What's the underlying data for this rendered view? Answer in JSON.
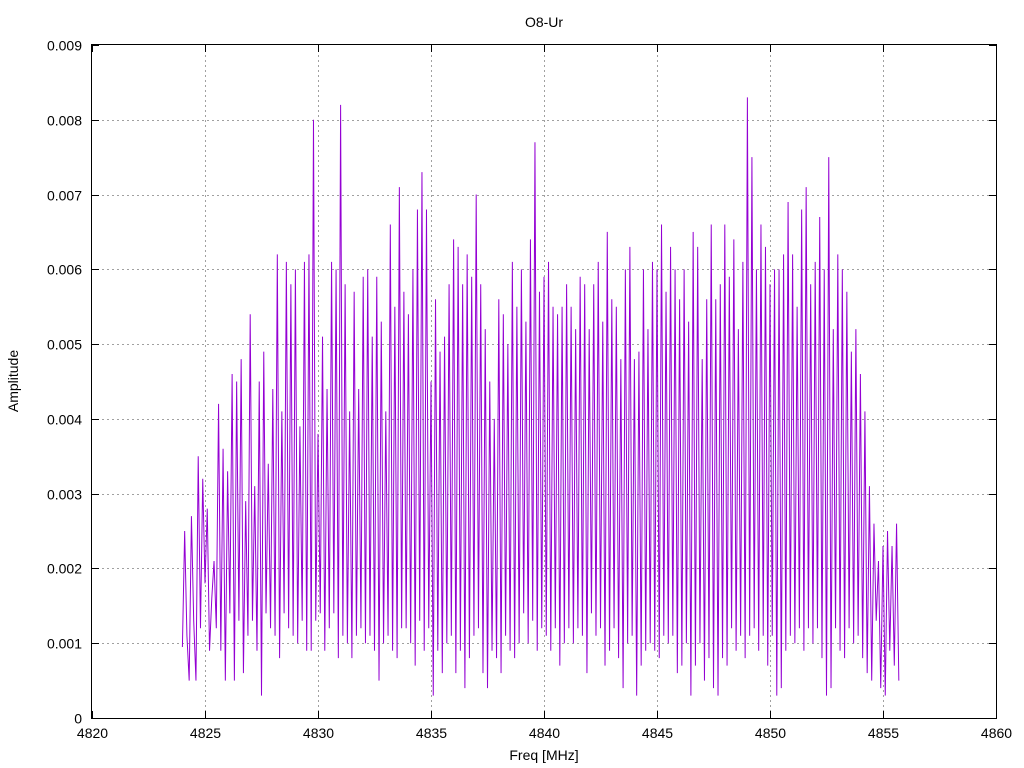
{
  "chart_data": {
    "type": "line",
    "title": "O8-Ur",
    "xlabel": "Freq [MHz]",
    "ylabel": "Amplitude",
    "xlim": [
      4820,
      4860
    ],
    "ylim": [
      0,
      0.009
    ],
    "x_ticks": [
      "4820",
      "4825",
      "4830",
      "4835",
      "4840",
      "4845",
      "4850",
      "4855",
      "4860"
    ],
    "y_ticks": [
      "0",
      "0.001",
      "0.002",
      "0.003",
      "0.004",
      "0.005",
      "0.006",
      "0.007",
      "0.008",
      "0.009"
    ],
    "grid": true,
    "series": [
      {
        "color": "#9400d3",
        "x_start": 4824.0,
        "x_step": 0.1,
        "values": [
          0.00095,
          0.0025,
          0.0011,
          0.0005,
          0.0027,
          0.0013,
          0.0005,
          0.0035,
          0.0012,
          0.0032,
          0.0018,
          0.0028,
          0.0009,
          0.0016,
          0.0021,
          0.0012,
          0.0042,
          0.0009,
          0.0036,
          0.0005,
          0.0033,
          0.0014,
          0.0046,
          0.0005,
          0.0045,
          0.0013,
          0.0048,
          0.0006,
          0.0029,
          0.0011,
          0.0054,
          0.0013,
          0.0031,
          0.0009,
          0.0045,
          0.0003,
          0.0049,
          0.0014,
          0.0034,
          0.0012,
          0.0044,
          0.0011,
          0.0062,
          0.0008,
          0.0041,
          0.0014,
          0.0061,
          0.0012,
          0.0058,
          0.0011,
          0.006,
          0.001,
          0.0039,
          0.0013,
          0.0061,
          0.0009,
          0.0062,
          0.0009,
          0.008,
          0.0013,
          0.0038,
          0.0014,
          0.0051,
          0.0009,
          0.0044,
          0.0012,
          0.0061,
          0.0014,
          0.006,
          0.0008,
          0.0082,
          0.0011,
          0.0058,
          0.001,
          0.0041,
          0.0008,
          0.0057,
          0.0011,
          0.0044,
          0.0012,
          0.0059,
          0.001,
          0.006,
          0.0011,
          0.0051,
          0.0009,
          0.0059,
          0.0005,
          0.0053,
          0.001,
          0.0041,
          0.0011,
          0.0066,
          0.0009,
          0.0055,
          0.0008,
          0.0071,
          0.0012,
          0.0057,
          0.0012,
          0.0054,
          0.001,
          0.006,
          0.0007,
          0.0068,
          0.0013,
          0.0073,
          0.0009,
          0.0068,
          0.0012,
          0.0045,
          0.0003,
          0.0056,
          0.0009,
          0.0049,
          0.0006,
          0.0051,
          0.001,
          0.0058,
          0.0011,
          0.0064,
          0.0006,
          0.0063,
          0.0009,
          0.0058,
          0.0004,
          0.0062,
          0.0008,
          0.0059,
          0.0011,
          0.007,
          0.0012,
          0.0058,
          0.0006,
          0.0052,
          0.0004,
          0.0045,
          0.0009,
          0.004,
          0.0008,
          0.0056,
          0.0006,
          0.0054,
          0.0011,
          0.005,
          0.0009,
          0.0061,
          0.0008,
          0.0055,
          0.001,
          0.006,
          0.0014,
          0.0053,
          0.001,
          0.0064,
          0.0013,
          0.0077,
          0.0009,
          0.0057,
          0.0012,
          0.0059,
          0.0011,
          0.0061,
          0.0009,
          0.0055,
          0.0012,
          0.0054,
          0.0007,
          0.0055,
          0.001,
          0.0058,
          0.0012,
          0.0055,
          0.001,
          0.0052,
          0.0012,
          0.0059,
          0.0011,
          0.0058,
          0.0006,
          0.0052,
          0.0014,
          0.0058,
          0.0011,
          0.0061,
          0.0012,
          0.0053,
          0.0007,
          0.0065,
          0.0009,
          0.0056,
          0.0012,
          0.0055,
          0.0008,
          0.0048,
          0.0004,
          0.006,
          0.001,
          0.0063,
          0.0011,
          0.0048,
          0.0003,
          0.0049,
          0.0007,
          0.006,
          0.0009,
          0.0052,
          0.001,
          0.0061,
          0.0009,
          0.006,
          0.0008,
          0.0066,
          0.0011,
          0.0057,
          0.001,
          0.0063,
          0.0011,
          0.006,
          0.0006,
          0.0056,
          0.0007,
          0.006,
          0.001,
          0.0053,
          0.0003,
          0.0065,
          0.0007,
          0.0063,
          0.001,
          0.0048,
          0.0005,
          0.0056,
          0.0008,
          0.0066,
          0.0004,
          0.0056,
          0.0003,
          0.0058,
          0.0008,
          0.0066,
          0.0007,
          0.0059,
          0.0012,
          0.0064,
          0.0009,
          0.0052,
          0.0011,
          0.0061,
          0.0008,
          0.0083,
          0.0011,
          0.0075,
          0.0012,
          0.006,
          0.0009,
          0.0066,
          0.0011,
          0.0063,
          0.0007,
          0.0058,
          0.0011,
          0.006,
          0.0003,
          0.006,
          0.0004,
          0.0062,
          0.0009,
          0.0069,
          0.0011,
          0.0062,
          0.001,
          0.0055,
          0.0012,
          0.0068,
          0.0009,
          0.0071,
          0.0012,
          0.0058,
          0.001,
          0.0061,
          0.0012,
          0.0067,
          0.0008,
          0.006,
          0.0003,
          0.0075,
          0.0004,
          0.0052,
          0.0012,
          0.0062,
          0.0009,
          0.006,
          0.0008,
          0.0057,
          0.0012,
          0.0049,
          0.001,
          0.0052,
          0.0011,
          0.0046,
          0.0008,
          0.0041,
          0.0006,
          0.0031,
          0.0005,
          0.0026,
          0.0013,
          0.0021,
          0.0004,
          0.0023,
          0.0003,
          0.0025,
          0.0009,
          0.0023,
          0.0007,
          0.0026,
          0.0005
        ]
      }
    ]
  }
}
